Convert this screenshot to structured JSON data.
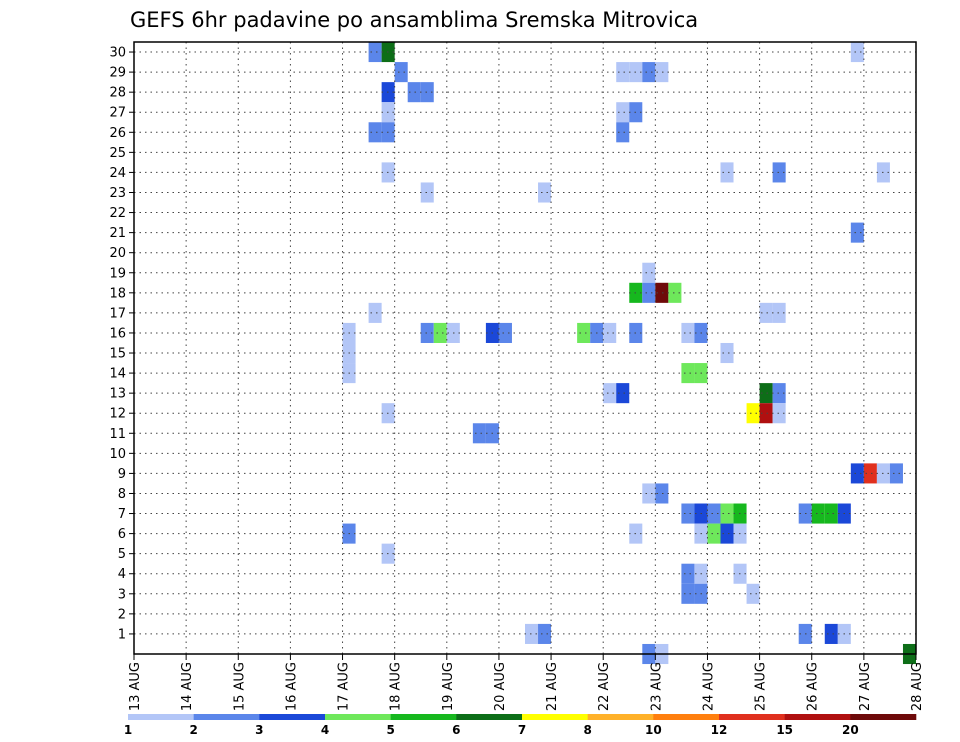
{
  "chart_data": {
    "type": "heatmap",
    "title": "GEFS 6hr padavine po ansamblima Sremska Mitrovica",
    "x_tick_labels": [
      "13 AUG",
      "14 AUG",
      "15 AUG",
      "16 AUG",
      "17 AUG",
      "18 AUG",
      "19 AUG",
      "20 AUG",
      "21 AUG",
      "22 AUG",
      "23 AUG",
      "24 AUG",
      "25 AUG",
      "26 AUG",
      "27 AUG",
      "28 AUG"
    ],
    "y_tick_labels": [
      "1",
      "2",
      "3",
      "4",
      "5",
      "6",
      "7",
      "8",
      "9",
      "10",
      "11",
      "12",
      "13",
      "14",
      "15",
      "16",
      "17",
      "18",
      "19",
      "20",
      "21",
      "22",
      "23",
      "24",
      "25",
      "26",
      "27",
      "28",
      "29",
      "30"
    ],
    "xlim": [
      "13 AUG 00",
      "28 AUG 00"
    ],
    "ylim": [
      0,
      30
    ],
    "grid": true,
    "steps_per_day": 4,
    "legend": {
      "position": "bottom",
      "labels": [
        "1",
        "2",
        "3",
        "4",
        "5",
        "6",
        "7",
        "8",
        "10",
        "12",
        "15",
        "20"
      ],
      "colors": [
        "#b3c6f7",
        "#5b86ea",
        "#1b48d8",
        "#6ee85b",
        "#16b81e",
        "#0d6e18",
        "#ffff00",
        "#ffb129",
        "#ff7f0e",
        "#e0301e",
        "#b01010",
        "#6e0a0a"
      ]
    },
    "palette": [
      "#b3c6f7",
      "#5b86ea",
      "#1b48d8",
      "#6ee85b",
      "#16b81e",
      "#0d6e18",
      "#ffff00",
      "#ffb129",
      "#ff7f0e",
      "#e0301e",
      "#b01010",
      "#6e0a0a"
    ],
    "cells": [
      {
        "m": 30,
        "s": 18,
        "c": 1
      },
      {
        "m": 30,
        "s": 19,
        "c": 5
      },
      {
        "m": 30,
        "s": 55,
        "c": 0
      },
      {
        "m": 29,
        "s": 20,
        "c": 1
      },
      {
        "m": 29,
        "s": 37,
        "c": 0
      },
      {
        "m": 29,
        "s": 38,
        "c": 0
      },
      {
        "m": 29,
        "s": 39,
        "c": 1
      },
      {
        "m": 29,
        "s": 40,
        "c": 0
      },
      {
        "m": 28,
        "s": 19,
        "c": 2
      },
      {
        "m": 28,
        "s": 21,
        "c": 1
      },
      {
        "m": 28,
        "s": 22,
        "c": 1
      },
      {
        "m": 27,
        "s": 19,
        "c": 0
      },
      {
        "m": 27,
        "s": 37,
        "c": 0
      },
      {
        "m": 27,
        "s": 38,
        "c": 1
      },
      {
        "m": 26,
        "s": 18,
        "c": 1
      },
      {
        "m": 26,
        "s": 19,
        "c": 1
      },
      {
        "m": 26,
        "s": 37,
        "c": 1
      },
      {
        "m": 24,
        "s": 19,
        "c": 0
      },
      {
        "m": 24,
        "s": 45,
        "c": 0
      },
      {
        "m": 24,
        "s": 49,
        "c": 1
      },
      {
        "m": 24,
        "s": 57,
        "c": 0
      },
      {
        "m": 23,
        "s": 22,
        "c": 0
      },
      {
        "m": 23,
        "s": 31,
        "c": 0
      },
      {
        "m": 21,
        "s": 55,
        "c": 1
      },
      {
        "m": 19,
        "s": 39,
        "c": 0
      },
      {
        "m": 18,
        "s": 38,
        "c": 4
      },
      {
        "m": 18,
        "s": 39,
        "c": 1
      },
      {
        "m": 18,
        "s": 40,
        "c": 11
      },
      {
        "m": 18,
        "s": 41,
        "c": 3
      },
      {
        "m": 17,
        "s": 18,
        "c": 0
      },
      {
        "m": 17,
        "s": 48,
        "c": 0
      },
      {
        "m": 17,
        "s": 49,
        "c": 0
      },
      {
        "m": 16,
        "s": 16,
        "c": 0
      },
      {
        "m": 16,
        "s": 22,
        "c": 1
      },
      {
        "m": 16,
        "s": 23,
        "c": 3
      },
      {
        "m": 16,
        "s": 24,
        "c": 0
      },
      {
        "m": 16,
        "s": 27,
        "c": 2
      },
      {
        "m": 16,
        "s": 28,
        "c": 1
      },
      {
        "m": 16,
        "s": 34,
        "c": 3
      },
      {
        "m": 16,
        "s": 35,
        "c": 1
      },
      {
        "m": 16,
        "s": 36,
        "c": 0
      },
      {
        "m": 16,
        "s": 38,
        "c": 1
      },
      {
        "m": 16,
        "s": 42,
        "c": 0
      },
      {
        "m": 16,
        "s": 43,
        "c": 1
      },
      {
        "m": 15,
        "s": 16,
        "c": 0
      },
      {
        "m": 15,
        "s": 45,
        "c": 0
      },
      {
        "m": 14,
        "s": 16,
        "c": 0
      },
      {
        "m": 14,
        "s": 42,
        "c": 3
      },
      {
        "m": 14,
        "s": 43,
        "c": 3
      },
      {
        "m": 13,
        "s": 36,
        "c": 0
      },
      {
        "m": 13,
        "s": 37,
        "c": 2
      },
      {
        "m": 13,
        "s": 48,
        "c": 5
      },
      {
        "m": 13,
        "s": 49,
        "c": 1
      },
      {
        "m": 12,
        "s": 19,
        "c": 0
      },
      {
        "m": 12,
        "s": 47,
        "c": 6
      },
      {
        "m": 12,
        "s": 48,
        "c": 10
      },
      {
        "m": 12,
        "s": 49,
        "c": 0
      },
      {
        "m": 11,
        "s": 26,
        "c": 1
      },
      {
        "m": 11,
        "s": 27,
        "c": 1
      },
      {
        "m": 9,
        "s": 55,
        "c": 2
      },
      {
        "m": 9,
        "s": 56,
        "c": 9
      },
      {
        "m": 9,
        "s": 57,
        "c": 0
      },
      {
        "m": 9,
        "s": 58,
        "c": 1
      },
      {
        "m": 8,
        "s": 39,
        "c": 0
      },
      {
        "m": 8,
        "s": 40,
        "c": 1
      },
      {
        "m": 7,
        "s": 42,
        "c": 1
      },
      {
        "m": 7,
        "s": 43,
        "c": 2
      },
      {
        "m": 7,
        "s": 44,
        "c": 1
      },
      {
        "m": 7,
        "s": 45,
        "c": 3
      },
      {
        "m": 7,
        "s": 46,
        "c": 4
      },
      {
        "m": 7,
        "s": 51,
        "c": 1
      },
      {
        "m": 7,
        "s": 52,
        "c": 4
      },
      {
        "m": 7,
        "s": 53,
        "c": 4
      },
      {
        "m": 7,
        "s": 54,
        "c": 2
      },
      {
        "m": 6,
        "s": 16,
        "c": 1
      },
      {
        "m": 6,
        "s": 38,
        "c": 0
      },
      {
        "m": 6,
        "s": 43,
        "c": 0
      },
      {
        "m": 6,
        "s": 44,
        "c": 3
      },
      {
        "m": 6,
        "s": 45,
        "c": 2
      },
      {
        "m": 6,
        "s": 46,
        "c": 0
      },
      {
        "m": 5,
        "s": 19,
        "c": 0
      },
      {
        "m": 4,
        "s": 42,
        "c": 1
      },
      {
        "m": 4,
        "s": 43,
        "c": 0
      },
      {
        "m": 4,
        "s": 46,
        "c": 0
      },
      {
        "m": 3,
        "s": 42,
        "c": 1
      },
      {
        "m": 3,
        "s": 43,
        "c": 1
      },
      {
        "m": 3,
        "s": 47,
        "c": 0
      },
      {
        "m": 1,
        "s": 30,
        "c": 0
      },
      {
        "m": 1,
        "s": 31,
        "c": 1
      },
      {
        "m": 1,
        "s": 51,
        "c": 1
      },
      {
        "m": 1,
        "s": 53,
        "c": 2
      },
      {
        "m": 1,
        "s": 54,
        "c": 0
      },
      {
        "m": 0,
        "s": 39,
        "c": 1
      },
      {
        "m": 0,
        "s": 40,
        "c": 0
      },
      {
        "m": 0,
        "s": 59,
        "c": 5
      }
    ]
  }
}
